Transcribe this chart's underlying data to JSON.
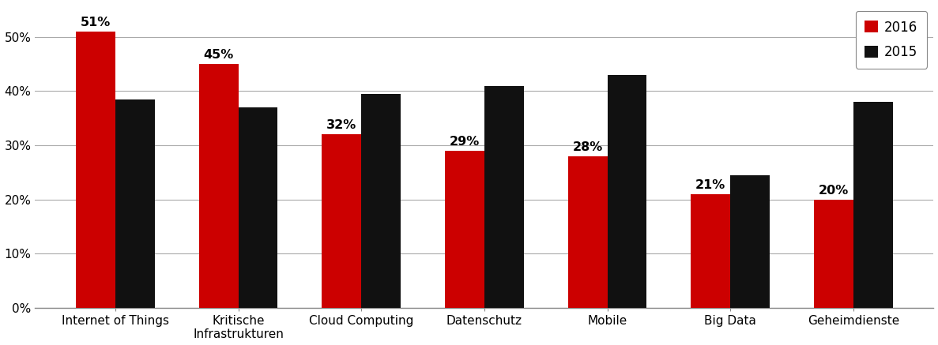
{
  "categories": [
    "Internet of Things",
    "Kritische\nInfrastrukturen",
    "Cloud Computing",
    "Datenschutz",
    "Mobile",
    "Big Data",
    "Geheimdienste"
  ],
  "values_2016": [
    51,
    45,
    32,
    29,
    28,
    21,
    20
  ],
  "values_2015": [
    38.5,
    37,
    39.5,
    41,
    43,
    24.5,
    38
  ],
  "color_2016": "#cc0000",
  "color_2015": "#111111",
  "legend_labels": [
    "2016",
    "2015"
  ],
  "ylim": [
    0,
    56
  ],
  "yticks": [
    0,
    10,
    20,
    30,
    40,
    50
  ],
  "bar_width": 0.32,
  "tick_fontsize": 11,
  "legend_fontsize": 12,
  "annotation_fontsize": 11.5
}
